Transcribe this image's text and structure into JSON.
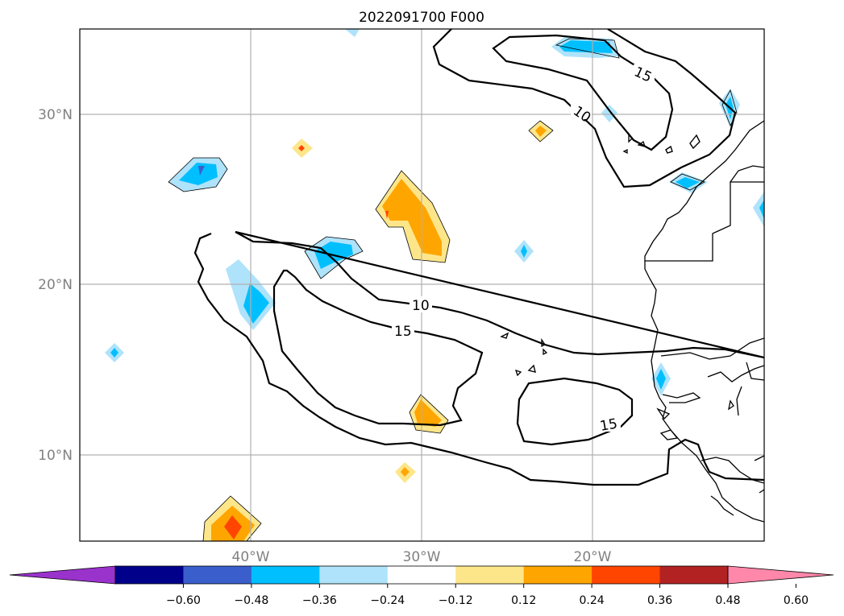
{
  "title": "2022091700 F000",
  "map": {
    "lat_labels": [
      "30°N",
      "20°N",
      "10°N"
    ],
    "lon_labels": [
      "40°W",
      "30°W",
      "20°W"
    ],
    "contour_labels": [
      {
        "id": "c10-north",
        "text": "10"
      },
      {
        "id": "c15-north",
        "text": "15"
      },
      {
        "id": "c10-central",
        "text": "10"
      },
      {
        "id": "c15-central",
        "text": "15"
      },
      {
        "id": "c15-east",
        "text": "15"
      }
    ]
  },
  "colorbar": {
    "ticks": [
      "−0.60",
      "−0.48",
      "−0.36",
      "−0.24",
      "−0.12",
      "0.12",
      "0.24",
      "0.36",
      "0.48",
      "0.60"
    ],
    "colors": {
      "under": "#9933cc",
      "bins": [
        "#00008b",
        "#3a5fcd",
        "#00bfff",
        "#aee3fb",
        "#ffffff",
        "#fde68a",
        "#ffa500",
        "#ff4500",
        "#b22222"
      ],
      "over": "#ff88aa"
    }
  },
  "colors": {
    "neg_light": "#aee3fb",
    "neg_mid": "#00bfff",
    "pos_light": "#fde68a",
    "pos_mid": "#ffa500",
    "pos_high": "#ff4500",
    "grid": "#b0b0b0"
  }
}
